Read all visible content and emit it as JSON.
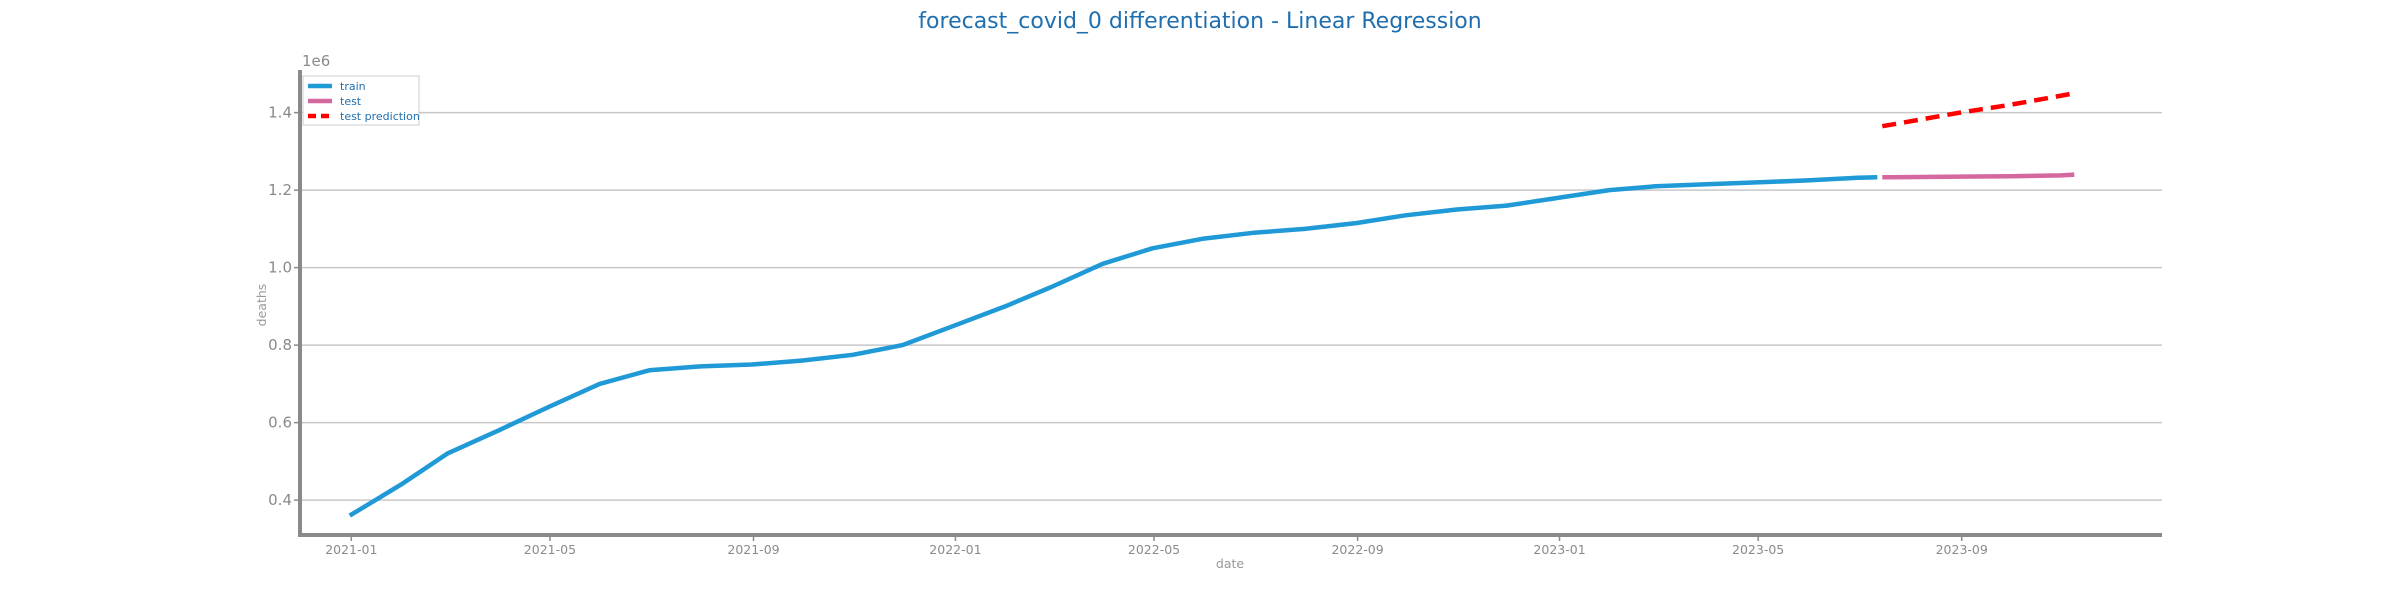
{
  "chart_data": {
    "type": "line",
    "title": "forecast_covid_0 differentiation - Linear Regression",
    "xlabel": "date",
    "ylabel": "deaths",
    "y_offset_label": "1e6",
    "ylim": [
      0.31,
      1.51
    ],
    "xlim": [
      "2020-12-01",
      "2023-12-31"
    ],
    "yticks": [
      0.4,
      0.6,
      0.8,
      1.0,
      1.2,
      1.4
    ],
    "ytick_labels": [
      "0.4",
      "0.6",
      "0.8",
      "1.0",
      "1.2",
      "1.4"
    ],
    "xticks": [
      "2021-01-01",
      "2021-05-01",
      "2021-09-01",
      "2022-01-01",
      "2022-05-01",
      "2022-09-01",
      "2023-01-01",
      "2023-05-01",
      "2023-09-01"
    ],
    "xtick_labels": [
      "2021-01",
      "2021-05",
      "2021-09",
      "2022-01",
      "2022-05",
      "2022-09",
      "2023-01",
      "2023-05",
      "2023-09"
    ],
    "grid": "horizontal",
    "legend_position": "top-left",
    "series": [
      {
        "name": "train",
        "color": "#1f9ad6",
        "style": "solid",
        "points": [
          [
            "2020-12-31",
            0.36
          ],
          [
            "2021-01-31",
            0.44
          ],
          [
            "2021-02-28",
            0.52
          ],
          [
            "2021-03-31",
            0.58
          ],
          [
            "2021-04-30",
            0.64
          ],
          [
            "2021-05-31",
            0.7
          ],
          [
            "2021-06-30",
            0.735
          ],
          [
            "2021-07-31",
            0.745
          ],
          [
            "2021-08-31",
            0.75
          ],
          [
            "2021-09-30",
            0.76
          ],
          [
            "2021-10-31",
            0.775
          ],
          [
            "2021-11-30",
            0.8
          ],
          [
            "2021-12-31",
            0.85
          ],
          [
            "2022-01-31",
            0.9
          ],
          [
            "2022-02-28",
            0.95
          ],
          [
            "2022-03-31",
            1.01
          ],
          [
            "2022-04-30",
            1.05
          ],
          [
            "2022-05-31",
            1.075
          ],
          [
            "2022-06-30",
            1.09
          ],
          [
            "2022-07-31",
            1.1
          ],
          [
            "2022-08-31",
            1.115
          ],
          [
            "2022-09-30",
            1.135
          ],
          [
            "2022-10-31",
            1.15
          ],
          [
            "2022-11-30",
            1.16
          ],
          [
            "2022-12-31",
            1.18
          ],
          [
            "2023-01-31",
            1.2
          ],
          [
            "2023-02-28",
            1.21
          ],
          [
            "2023-03-31",
            1.215
          ],
          [
            "2023-04-30",
            1.22
          ],
          [
            "2023-05-31",
            1.225
          ],
          [
            "2023-06-30",
            1.232
          ],
          [
            "2023-07-12",
            1.233
          ]
        ]
      },
      {
        "name": "test",
        "color": "#d4689f",
        "style": "solid",
        "points": [
          [
            "2023-07-15",
            1.233
          ],
          [
            "2023-08-31",
            1.235
          ],
          [
            "2023-09-30",
            1.236
          ],
          [
            "2023-10-31",
            1.238
          ],
          [
            "2023-11-08",
            1.24
          ]
        ]
      },
      {
        "name": "test prediction",
        "color": "#ff0000",
        "style": "dashed",
        "points": [
          [
            "2023-07-15",
            1.365
          ],
          [
            "2023-08-31",
            1.4
          ],
          [
            "2023-09-30",
            1.42
          ],
          [
            "2023-11-08",
            1.45
          ]
        ]
      }
    ]
  }
}
